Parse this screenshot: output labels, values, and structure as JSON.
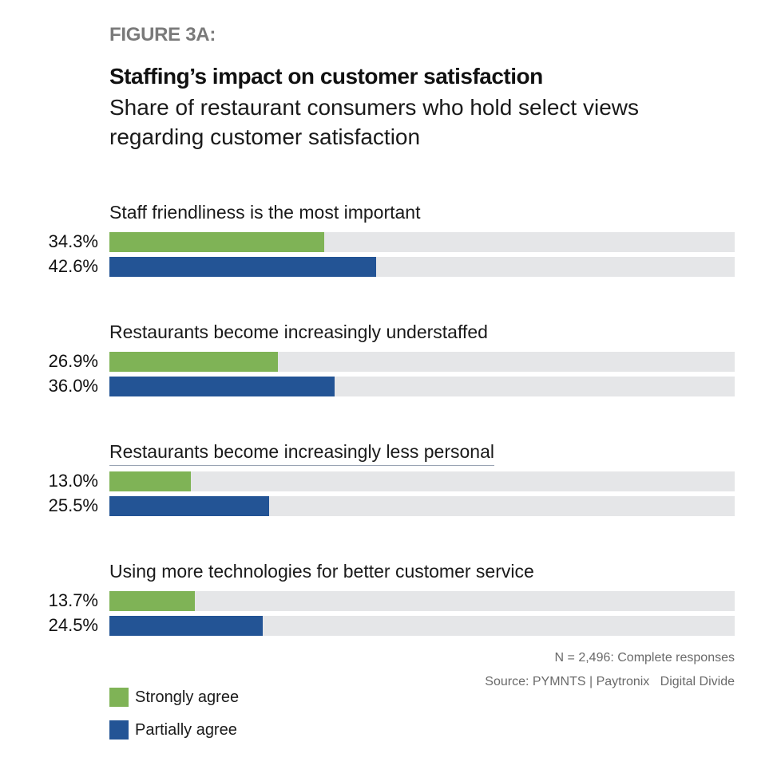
{
  "chart_data": {
    "type": "bar",
    "orientation": "horizontal",
    "figure_label": "FIGURE 3A:",
    "title": "Staffing’s impact on customer satisfaction",
    "subtitle": "Share of restaurant consumers who hold select views regarding customer satisfaction",
    "xlim": [
      0,
      100
    ],
    "unit": "%",
    "categories": [
      "Staff friendliness is the most important",
      "Restaurants become increasingly understaffed",
      "Restaurants become increasingly less personal",
      "Using more technologies for better customer service"
    ],
    "series": [
      {
        "name": "Strongly agree",
        "color": "#7fb356",
        "values": [
          34.3,
          26.9,
          13.0,
          13.7
        ],
        "labels": [
          "34.3%",
          "26.9%",
          "13.0%",
          "13.7%"
        ]
      },
      {
        "name": "Partially agree",
        "color": "#235495",
        "values": [
          42.6,
          36.0,
          25.5,
          24.5
        ],
        "labels": [
          "42.6%",
          "36.0%",
          "25.5%",
          "24.5%"
        ]
      }
    ],
    "track_color": "#e5e6e8",
    "legend": {
      "placement": "bottom-left",
      "entries": [
        "Strongly agree",
        "Partially agree"
      ]
    },
    "notes": [
      "N = 2,496: Complete responses",
      "Source: PYMNTS | Paytronix   Digital Divide"
    ]
  }
}
